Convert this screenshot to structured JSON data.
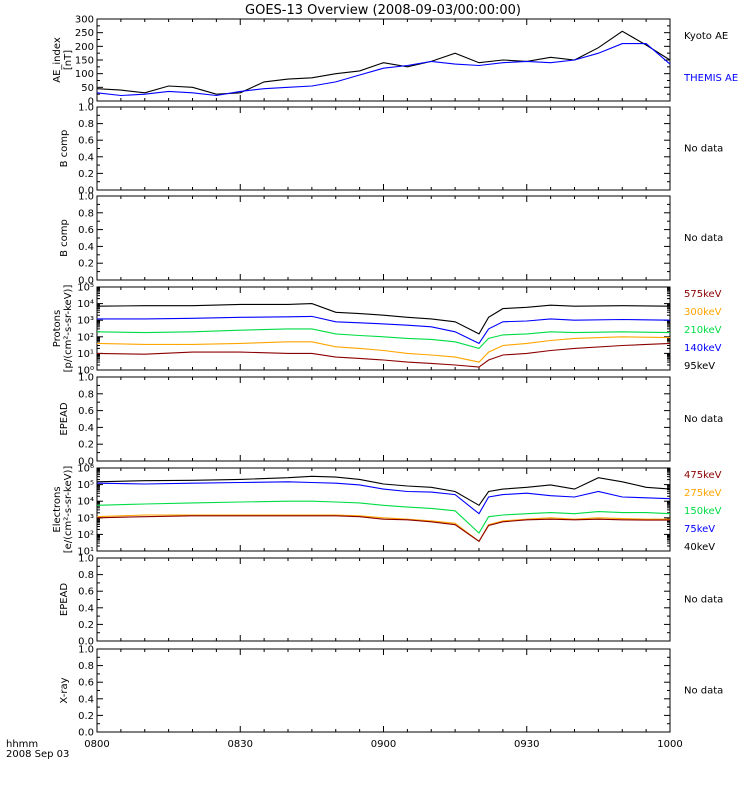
{
  "title": "GOES-13 Overview (2008-09-03/00:00:00)",
  "footer": {
    "time_format": "hhmm",
    "date": "2008 Sep 03"
  },
  "x_ticks": [
    "0800",
    "0830",
    "0900",
    "0930",
    "1000"
  ],
  "chart_data": [
    {
      "type": "line",
      "ylabel_lines": [
        "AE_index",
        "[nT]"
      ],
      "ylim": [
        0,
        300
      ],
      "yticks": [
        "0",
        "50",
        "100",
        "150",
        "200",
        "250",
        "300"
      ],
      "x": [
        0,
        5,
        10,
        15,
        20,
        25,
        30,
        35,
        40,
        45,
        50,
        55,
        60,
        65,
        70,
        75,
        80,
        85,
        90,
        95,
        100,
        105,
        110,
        115,
        120
      ],
      "series": [
        {
          "name": "Kyoto AE",
          "color": "#000000",
          "values": [
            45,
            40,
            30,
            55,
            50,
            25,
            30,
            70,
            80,
            85,
            100,
            110,
            140,
            125,
            145,
            175,
            140,
            150,
            145,
            160,
            150,
            195,
            255,
            205,
            150
          ]
        },
        {
          "name": "THEMIS AE",
          "color": "#0000ff",
          "values": [
            30,
            20,
            25,
            35,
            30,
            20,
            35,
            45,
            50,
            55,
            70,
            95,
            120,
            130,
            145,
            135,
            130,
            140,
            145,
            140,
            150,
            175,
            210,
            210,
            135
          ]
        }
      ]
    },
    {
      "type": "line",
      "ylabel_lines": [
        "B comp"
      ],
      "ylim": [
        0,
        1
      ],
      "yticks": [
        "0.0",
        "0.2",
        "0.4",
        "0.6",
        "0.8",
        "1.0"
      ],
      "no_data": "No data",
      "series": []
    },
    {
      "type": "line",
      "ylabel_lines": [
        "B comp"
      ],
      "ylim": [
        0,
        1
      ],
      "yticks": [
        "0.0",
        "0.2",
        "0.4",
        "0.6",
        "0.8",
        "1.0"
      ],
      "no_data": "No data",
      "series": []
    },
    {
      "type": "line",
      "log_scale": true,
      "ylabel_lines": [
        "Protons",
        "[p/(cm²-s-sr-keV)]"
      ],
      "ylim": [
        1,
        100000
      ],
      "yticks": [
        "10⁰",
        "10¹",
        "10²",
        "10³",
        "10⁴",
        "10⁵"
      ],
      "x": [
        0,
        10,
        20,
        30,
        40,
        45,
        50,
        55,
        60,
        65,
        70,
        75,
        80,
        82,
        85,
        90,
        95,
        100,
        110,
        120
      ],
      "series": [
        {
          "name": "95keV",
          "color": "#000000",
          "values": [
            7000,
            7500,
            7500,
            9000,
            9000,
            10000,
            3000,
            2500,
            2000,
            1500,
            1200,
            800,
            150,
            1500,
            5000,
            6000,
            8000,
            7000,
            7500,
            7000
          ]
        },
        {
          "name": "140keV",
          "color": "#0000ff",
          "values": [
            1200,
            1200,
            1300,
            1500,
            1600,
            1700,
            800,
            700,
            600,
            500,
            400,
            200,
            40,
            300,
            800,
            900,
            1200,
            1000,
            1100,
            1000
          ]
        },
        {
          "name": "210keV",
          "color": "#00dd44",
          "values": [
            200,
            180,
            200,
            250,
            300,
            300,
            150,
            120,
            100,
            80,
            70,
            50,
            20,
            80,
            130,
            150,
            200,
            180,
            200,
            180
          ]
        },
        {
          "name": "300keV",
          "color": "#ffa500",
          "values": [
            40,
            35,
            35,
            40,
            50,
            50,
            25,
            20,
            15,
            10,
            8,
            6,
            3,
            12,
            30,
            40,
            60,
            80,
            100,
            90
          ]
        },
        {
          "name": "575keV",
          "color": "#8b0000",
          "values": [
            10,
            9,
            12,
            12,
            10,
            10,
            6,
            5,
            4,
            3,
            2.5,
            2,
            1.5,
            4,
            8,
            10,
            15,
            20,
            30,
            40
          ]
        }
      ]
    },
    {
      "type": "line",
      "ylabel_lines": [
        "EPEAD"
      ],
      "ylim": [
        0,
        1
      ],
      "yticks": [
        "0.0",
        "0.2",
        "0.4",
        "0.6",
        "0.8",
        "1.0"
      ],
      "no_data": "No data",
      "series": []
    },
    {
      "type": "line",
      "log_scale": true,
      "ylabel_lines": [
        "Electrons",
        "[e/(cm²-s-sr-keV)]"
      ],
      "ylim": [
        1,
        1000000
      ],
      "yticks": [
        "10¹",
        "10²",
        "10³",
        "10⁴",
        "10⁵",
        "10⁶"
      ],
      "x": [
        0,
        10,
        20,
        30,
        40,
        45,
        50,
        55,
        60,
        65,
        70,
        75,
        80,
        82,
        85,
        90,
        95,
        100,
        105,
        110,
        115,
        120
      ],
      "series": [
        {
          "name": "40keV",
          "color": "#000000",
          "values": [
            100000,
            120000,
            130000,
            150000,
            200000,
            250000,
            220000,
            150000,
            70000,
            50000,
            40000,
            20000,
            2000,
            20000,
            30000,
            40000,
            60000,
            30000,
            200000,
            100000,
            40000,
            30000
          ]
        },
        {
          "name": "75keV",
          "color": "#0000ff",
          "values": [
            80000,
            70000,
            80000,
            90000,
            100000,
            90000,
            80000,
            60000,
            30000,
            20000,
            18000,
            12000,
            500,
            8000,
            12000,
            15000,
            10000,
            8000,
            20000,
            8000,
            7000,
            6000
          ]
        },
        {
          "name": "150keV",
          "color": "#00dd44",
          "values": [
            2000,
            2500,
            3000,
            3500,
            4000,
            4000,
            3500,
            3000,
            2000,
            1500,
            1200,
            800,
            20,
            300,
            400,
            500,
            600,
            500,
            700,
            600,
            600,
            500
          ]
        },
        {
          "name": "275keV",
          "color": "#ffa500",
          "values": [
            300,
            400,
            400,
            400,
            400,
            400,
            400,
            350,
            250,
            200,
            150,
            100,
            5,
            80,
            150,
            200,
            250,
            200,
            250,
            220,
            200,
            200
          ]
        },
        {
          "name": "475keV",
          "color": "#8b0000",
          "values": [
            250,
            300,
            350,
            350,
            350,
            350,
            350,
            300,
            200,
            180,
            130,
            80,
            5,
            70,
            130,
            180,
            200,
            180,
            200,
            180,
            170,
            170
          ]
        }
      ]
    },
    {
      "type": "line",
      "ylabel_lines": [
        "EPEAD"
      ],
      "ylim": [
        0,
        1
      ],
      "yticks": [
        "0.0",
        "0.2",
        "0.4",
        "0.6",
        "0.8",
        "1.0"
      ],
      "no_data": "No data",
      "series": []
    },
    {
      "type": "line",
      "ylabel_lines": [
        "X-ray"
      ],
      "ylim": [
        0,
        1
      ],
      "yticks": [
        "0.0",
        "0.2",
        "0.4",
        "0.6",
        "0.8",
        "1.0"
      ],
      "no_data": "No data",
      "series": []
    }
  ]
}
